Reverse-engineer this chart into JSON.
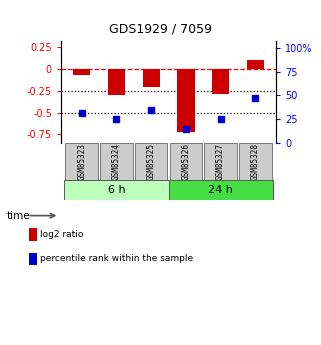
{
  "title": "GDS1929 / 7059",
  "samples": [
    "GSM85323",
    "GSM85324",
    "GSM85325",
    "GSM85326",
    "GSM85327",
    "GSM85328"
  ],
  "log2_ratio": [
    -0.07,
    -0.3,
    -0.2,
    -0.72,
    -0.29,
    0.11
  ],
  "percentile_rank": [
    32,
    25,
    35,
    15,
    25,
    47
  ],
  "groups": [
    {
      "label": "6 h",
      "indices": [
        0,
        1,
        2
      ],
      "color": "#bbffbb"
    },
    {
      "label": "24 h",
      "indices": [
        3,
        4,
        5
      ],
      "color": "#44dd44"
    }
  ],
  "ylim_left": [
    -0.85,
    0.32
  ],
  "ylim_right": [
    0,
    107
  ],
  "yticks_left": [
    0.25,
    0,
    -0.25,
    -0.5,
    -0.75
  ],
  "yticks_right": [
    100,
    75,
    50,
    25,
    0
  ],
  "hlines": [
    0,
    -0.25,
    -0.5
  ],
  "hline_colors": [
    "red",
    "black",
    "black"
  ],
  "hline_styles": [
    "--",
    ":",
    ":"
  ],
  "bar_color": "#cc0000",
  "dot_color": "#0000cc",
  "bar_width": 0.5,
  "legend_labels": [
    "log2 ratio",
    "percentile rank within the sample"
  ],
  "legend_colors": [
    "#cc0000",
    "#0000cc"
  ],
  "bg_color": "#ffffff"
}
